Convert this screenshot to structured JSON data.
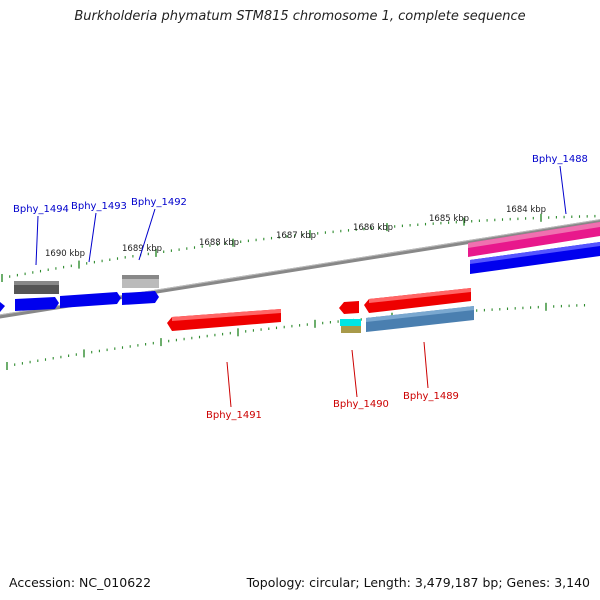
{
  "title": "Burkholderia phymatum STM815 chromosome 1, complete sequence",
  "footer": {
    "accession": "Accession: NC_010622",
    "topology": "Topology: circular; Length: 3,479,187 bp; Genes: 3,140"
  },
  "ruler_labels": [
    "1690 kbp",
    "1689 kbp",
    "1688 kbp",
    "1687 kbp",
    "1686 kbp",
    "1685 kbp",
    "1684 kbp"
  ],
  "gene_labels": {
    "plus": [
      "Bphy_1494",
      "Bphy_1493",
      "Bphy_1492",
      "Bphy_1488"
    ],
    "minus": [
      "Bphy_1491",
      "Bphy_1490",
      "Bphy_1489"
    ]
  },
  "colors": {
    "plus_label": "#0000cc",
    "minus_label": "#cc0000",
    "backbone": "#888888",
    "tick": "#2e8b2e",
    "blue_gene": "#0000ee",
    "red_gene": "#ee0000",
    "pink_gene": "#e8188c",
    "dark_gray_gene": "#555555",
    "light_gray_gene": "#bbbbbb",
    "cyan_gene": "#00e5e5",
    "olive_gene": "#a89a4a",
    "steel_blue_gene": "#4a7fb0"
  }
}
